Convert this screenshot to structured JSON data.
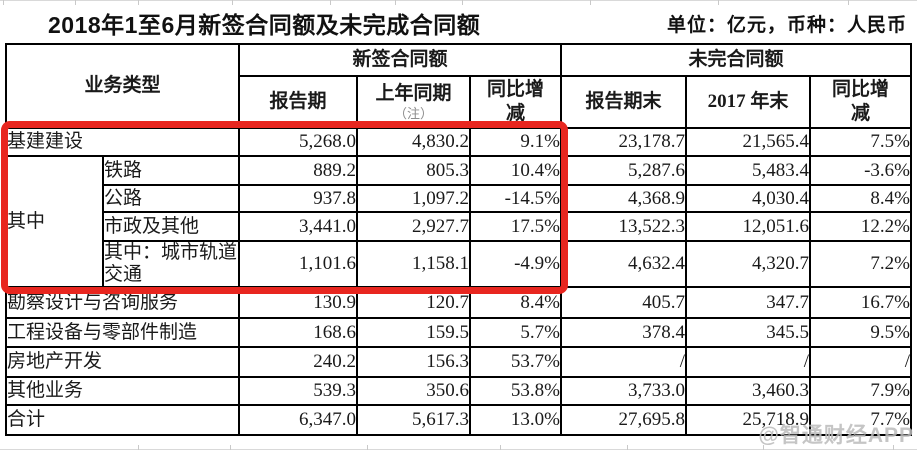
{
  "title": "2018年1至6月新签合同额及未完成合同额",
  "unit_note": "单位：亿元，币种：人民币",
  "watermark": "@智通财经APP",
  "accent_colors": {
    "highlight_box": "#e8261f",
    "note_gray": "#8d8d8d"
  },
  "table": {
    "headers": {
      "business_type": "业务类型",
      "new_group": "新签合同额",
      "backlog_group": "未完合同额",
      "new_cols": [
        "报告期",
        "上年同期",
        "同比增减"
      ],
      "note": "（注）",
      "backlog_cols": [
        "报告期末",
        "2017 年末",
        "同比增减"
      ]
    },
    "group_label": "其中",
    "rows": [
      {
        "label": "基建建设",
        "cells": [
          "5,268.0",
          "4,830.2",
          "9.1%",
          "23,178.7",
          "21,565.4",
          "7.5%"
        ]
      },
      {
        "label": "铁路",
        "cells": [
          "889.2",
          "805.3",
          "10.4%",
          "5,287.6",
          "5,483.4",
          "-3.6%"
        ]
      },
      {
        "label": "公路",
        "cells": [
          "937.8",
          "1,097.2",
          "-14.5%",
          "4,368.9",
          "4,030.4",
          "8.4%"
        ]
      },
      {
        "label": "市政及其他",
        "cells": [
          "3,441.0",
          "2,927.7",
          "17.5%",
          "13,522.3",
          "12,051.6",
          "12.2%"
        ]
      },
      {
        "label": "其中：城市轨道交通",
        "cells": [
          "1,101.6",
          "1,158.1",
          "-4.9%",
          "4,632.4",
          "4,320.7",
          "7.2%"
        ]
      },
      {
        "label": "勘察设计与咨询服务",
        "cells": [
          "130.9",
          "120.7",
          "8.4%",
          "405.7",
          "347.7",
          "16.7%"
        ]
      },
      {
        "label": "工程设备与零部件制造",
        "cells": [
          "168.6",
          "159.5",
          "5.7%",
          "378.4",
          "345.5",
          "9.5%"
        ]
      },
      {
        "label": "房地产开发",
        "cells": [
          "240.2",
          "156.3",
          "53.7%",
          "/",
          "/",
          "/"
        ]
      },
      {
        "label": "其他业务",
        "cells": [
          "539.3",
          "350.6",
          "53.8%",
          "3,733.0",
          "3,460.3",
          "7.9%"
        ]
      },
      {
        "label": "合计",
        "cells": [
          "6,347.0",
          "5,617.3",
          "13.0%",
          "27,695.8",
          "25,718.9",
          "7.7%"
        ]
      }
    ]
  }
}
